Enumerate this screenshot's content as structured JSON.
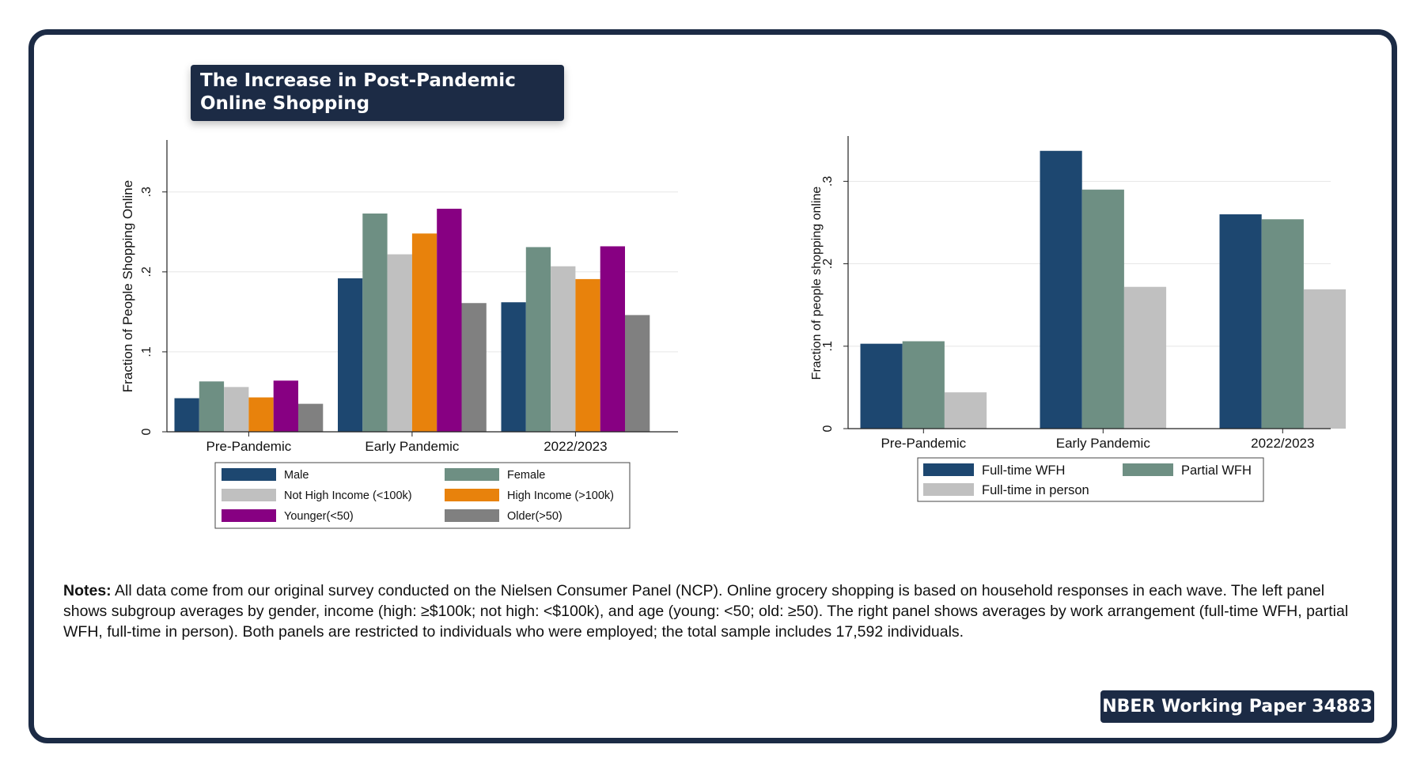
{
  "title": "The Increase in Post-Pandemic Online Shopping",
  "notes": {
    "label": "Notes:",
    "text": "All data come from our original survey conducted on the Nielsen Consumer Panel (NCP). Online grocery shopping is based on household responses in each wave. The left panel shows subgroup averages by gender, income (high: ≥$100k; not high: <$100k), and age (young: <50; old: ≥50). The right panel shows averages by work arrangement (full-time WFH, partial WFH, full-time in person). Both panels are restricted to individuals who were employed; the total sample includes 17,592 individuals."
  },
  "source_badge": "NBER Working Paper 34883",
  "chart_data": [
    {
      "type": "bar",
      "ylabel": "Fraction of People Shopping Online",
      "ylim": [
        0,
        0.365
      ],
      "yticks": [
        0,
        0.1,
        0.2,
        0.3
      ],
      "ytick_labels": [
        "0",
        ".1",
        ".2",
        ".3"
      ],
      "grid": true,
      "legend_placement": "bottom",
      "categories": [
        "Pre-Pandemic",
        "Early Pandemic",
        "2022/2023"
      ],
      "series": [
        {
          "name": "Male",
          "color": "#1d4770",
          "values": [
            0.042,
            0.192,
            0.162
          ]
        },
        {
          "name": "Female",
          "color": "#6e8f83",
          "values": [
            0.063,
            0.273,
            0.231
          ]
        },
        {
          "name": "Not High Income (<100k)",
          "color": "#c0c0c0",
          "values": [
            0.056,
            0.222,
            0.207
          ]
        },
        {
          "name": "High Income (>100k)",
          "color": "#e8820c",
          "values": [
            0.043,
            0.248,
            0.191
          ]
        },
        {
          "name": "Younger(<50)",
          "color": "#870082",
          "values": [
            0.064,
            0.279,
            0.232
          ]
        },
        {
          "name": "Older(>50)",
          "color": "#808080",
          "values": [
            0.035,
            0.161,
            0.146
          ]
        }
      ]
    },
    {
      "type": "bar",
      "ylabel": "Fraction of people shopping online",
      "ylim": [
        0,
        0.355
      ],
      "yticks": [
        0,
        0.1,
        0.2,
        0.3
      ],
      "ytick_labels": [
        "0",
        ".1",
        ".2",
        ".3"
      ],
      "grid": true,
      "legend_placement": "bottom",
      "categories": [
        "Pre-Pandemic",
        "Early Pandemic",
        "2022/2023"
      ],
      "series": [
        {
          "name": "Full-time WFH",
          "color": "#1d4770",
          "values": [
            0.103,
            0.337,
            0.26
          ]
        },
        {
          "name": "Partial WFH",
          "color": "#6e8f83",
          "values": [
            0.106,
            0.29,
            0.254
          ]
        },
        {
          "name": "Full-time in person",
          "color": "#c0c0c0",
          "values": [
            0.044,
            0.172,
            0.169
          ]
        }
      ]
    }
  ]
}
